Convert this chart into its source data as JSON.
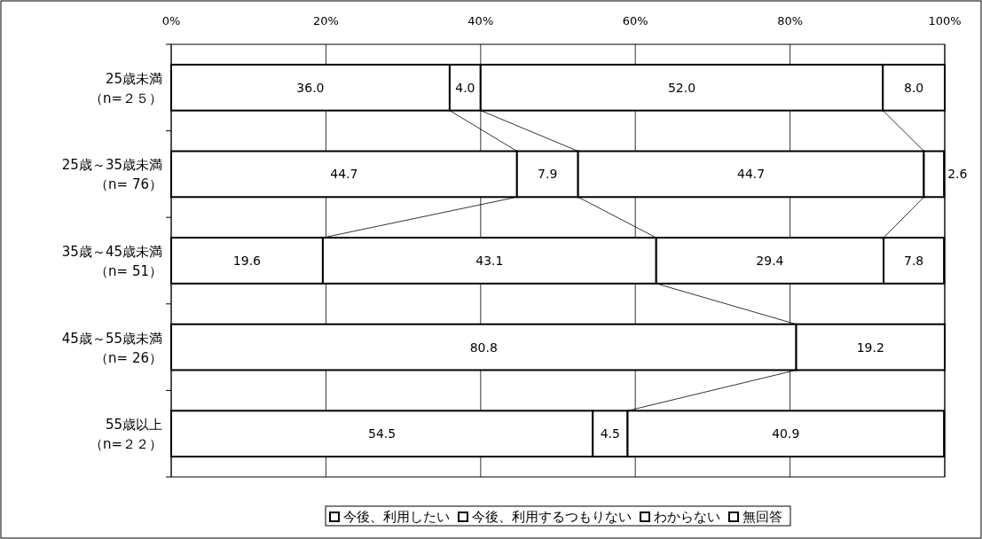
{
  "chart_data": {
    "type": "bar",
    "orientation": "horizontal",
    "stacked": true,
    "categories": [
      "25歳未満（n=２５）",
      "25歳～35歳未満（n= 76）",
      "35歳～45歳未満（n= 51）",
      "45歳～55歳未満（n= 26）",
      "55歳以上（n=２２）"
    ],
    "series": [
      {
        "name": "今後、利用したい",
        "color": "#ffffff",
        "values": [
          36.0,
          44.7,
          19.6,
          null,
          54.5
        ],
        "value_labels": [
          "36.0",
          "44.7",
          "19.6",
          null,
          "54.5"
        ]
      },
      {
        "name": "今後、利用するつもりない",
        "color": "#ffffff",
        "values": [
          4.0,
          7.9,
          43.1,
          80.8,
          4.5
        ],
        "value_labels": [
          "4.0",
          "7.9",
          "43.1",
          "80.8",
          "4.5"
        ]
      },
      {
        "name": "わからない",
        "color": "#ffffff",
        "values": [
          52.0,
          44.7,
          29.4,
          null,
          40.9
        ],
        "value_labels": [
          "52.0",
          "44.7",
          "29.4",
          null,
          "40.9"
        ]
      },
      {
        "name": "無回答",
        "color": "#ffffff",
        "values": [
          8.0,
          2.6,
          7.8,
          19.2,
          null
        ],
        "value_labels": [
          "8.0",
          "2.6",
          "7.8",
          "19.2",
          null
        ]
      }
    ],
    "xlim": [
      0,
      100
    ],
    "xticks": [
      {
        "value": 0,
        "label": "0%"
      },
      {
        "value": 20,
        "label": "20%"
      },
      {
        "value": 40,
        "label": "40%"
      },
      {
        "value": 60,
        "label": "60%"
      },
      {
        "value": 80,
        "label": "80%"
      },
      {
        "value": 100,
        "label": "100%"
      }
    ],
    "grid": "x",
    "legend": "bottom"
  }
}
